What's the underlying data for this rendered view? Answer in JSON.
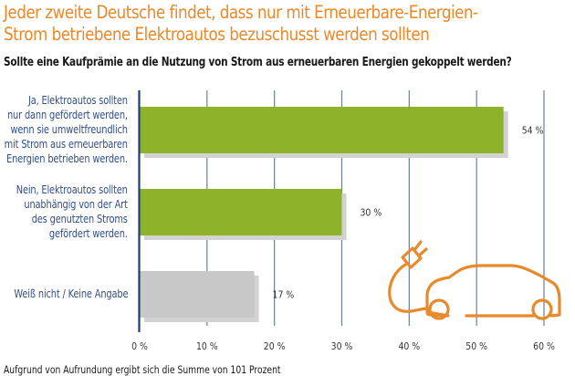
{
  "header": {
    "title_line1": "Jeder zweite Deutsche findet, dass nur mit Erneuerbare-Energien-",
    "title_line2": "Strom betriebene Elektroautos bezuschusst werden sollten",
    "subtitle": "Sollte eine Kaufprämie an die Nutzung von Strom aus erneuerbaren Energien gekoppelt werden?"
  },
  "footnote": "Aufgrund von Aufrundung ergibt sich die Summe von 101 Prozent",
  "colors": {
    "title": "#e8892b",
    "bar_green": "#8db32a",
    "bar_grey": "#c8c8c8",
    "shadow": "#d2d2d2",
    "axis": "#1f3b7a",
    "grid": "#6b7f99",
    "label_blue": "#2f4f8c",
    "icon_orange": "#e8892b"
  },
  "icon": {
    "name": "electric-car-with-plug-icon"
  },
  "chart_data": {
    "type": "bar",
    "orientation": "horizontal",
    "title": "Jeder zweite Deutsche findet, dass nur mit Erneuerbare-Energien-Strom betriebene Elektroautos bezuschusst werden sollten",
    "subtitle": "Sollte eine Kaufprämie an die Nutzung von Strom aus erneuerbaren Energien gekoppelt werden?",
    "categories": [
      [
        "Ja, Elektroautos sollten",
        "nur dann gefördert werden,",
        "wenn sie umweltfreundlich",
        "mit Strom aus erneuerbaren",
        "Energien betrieben werden."
      ],
      [
        "Nein, Elektroautos sollten",
        "unabhängig von der Art",
        "des genutzten Stroms",
        "gefördert werden."
      ],
      [
        "Weiß nicht / Keine Angabe"
      ]
    ],
    "values": [
      54,
      30,
      17
    ],
    "value_labels": [
      "54 %",
      "30 %",
      "17 %"
    ],
    "bar_colors": [
      "#8db32a",
      "#8db32a",
      "#c8c8c8"
    ],
    "xlim": [
      0,
      60
    ],
    "xticks": [
      0,
      10,
      20,
      30,
      40,
      50,
      60
    ],
    "xtick_labels": [
      "0 %",
      "10 %",
      "20 %",
      "30 %",
      "40 %",
      "50 %",
      "60 %"
    ],
    "xlabel": "",
    "ylabel": "",
    "grid": true,
    "legend": "none"
  }
}
